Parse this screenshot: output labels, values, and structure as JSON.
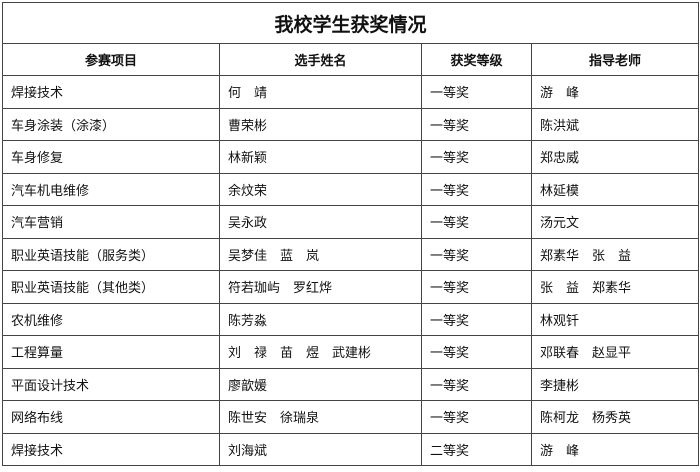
{
  "title": "我校学生获奖情况",
  "columns": [
    "参赛项目",
    "选手姓名",
    "获奖等级",
    "指导老师"
  ],
  "rows": [
    [
      "焊接技术",
      "何　靖",
      "一等奖",
      "游　峰"
    ],
    [
      "车身涂装（涂漆）",
      "曹荣彬",
      "一等奖",
      "陈洪斌"
    ],
    [
      "车身修复",
      "林新颖",
      "一等奖",
      "郑忠威"
    ],
    [
      "汽车机电维修",
      "余炆荣",
      "一等奖",
      "林延模"
    ],
    [
      "汽车营销",
      "吴永政",
      "一等奖",
      "汤元文"
    ],
    [
      "职业英语技能（服务类）",
      "吴梦佳　蓝　岚",
      "一等奖",
      "郑素华　张　益"
    ],
    [
      "职业英语技能（其他类）",
      "符若珈屿　罗红烨",
      "一等奖",
      "张　益　郑素华"
    ],
    [
      "农机维修",
      "陈芳淼",
      "一等奖",
      "林观钎"
    ],
    [
      "工程算量",
      "刘　禄　苗　煜　武建彬",
      "一等奖",
      "邓联春　赵显平"
    ],
    [
      "平面设计技术",
      "廖歆媛",
      "一等奖",
      "李捷彬"
    ],
    [
      "网络布线",
      "陈世安　徐瑞泉",
      "一等奖",
      "陈柯龙　杨秀英"
    ],
    [
      "焊接技术",
      "刘海斌",
      "二等奖",
      "游　峰"
    ]
  ]
}
